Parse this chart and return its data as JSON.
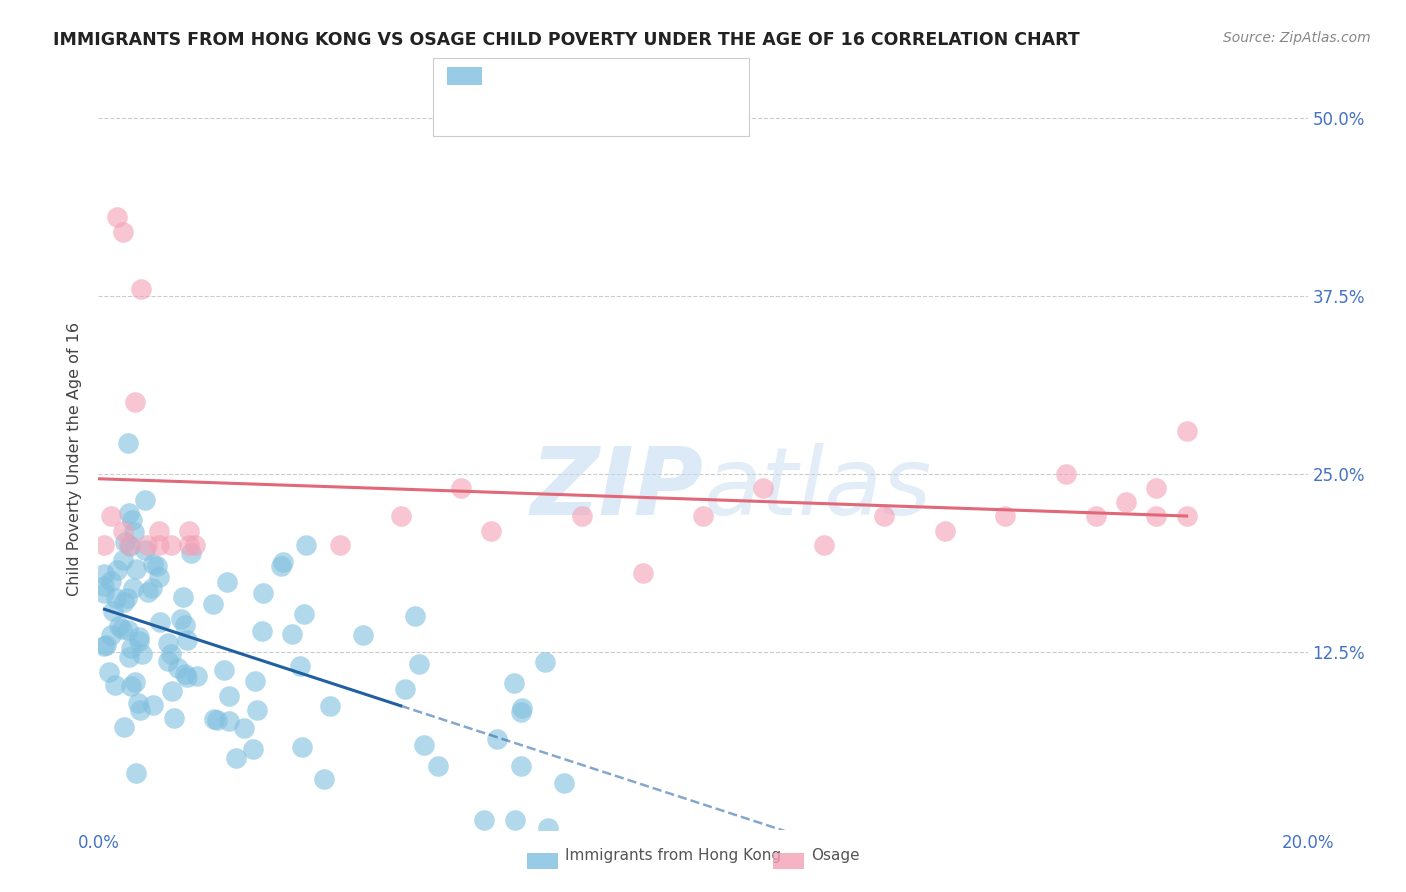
{
  "title": "IMMIGRANTS FROM HONG KONG VS OSAGE CHILD POVERTY UNDER THE AGE OF 16 CORRELATION CHART",
  "source": "Source: ZipAtlas.com",
  "ylabel": "Child Poverty Under the Age of 16",
  "xlim": [
    0.0,
    0.2
  ],
  "ylim": [
    0.0,
    0.52
  ],
  "background_color": "#ffffff",
  "blue_color": "#7fbfdf",
  "pink_color": "#f4a0b5",
  "blue_line_color": "#2060a0",
  "pink_line_color": "#e06878",
  "tick_label_color": "#4472c4",
  "ylabel_color": "#444444",
  "title_color": "#222222",
  "source_color": "#888888",
  "grid_color": "#cccccc",
  "watermark_color": "#c0d8f0",
  "legend_label_color": "#4472c4",
  "legend_R_color": "#4472c4",
  "legend_border_color": "#cccccc"
}
